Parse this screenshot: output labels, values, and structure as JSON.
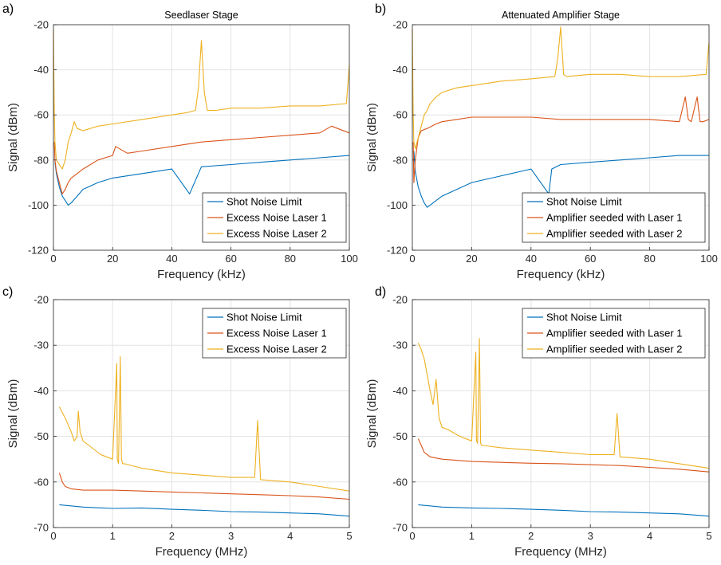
{
  "colors": {
    "shot": "#0072BD",
    "laser1": "#D95319",
    "laser2": "#EDB120",
    "grid": "#e3e3e3",
    "axis": "#262626"
  },
  "chart_data": [
    {
      "panel_label": "a)",
      "type": "line",
      "title": "Seedlaser Stage",
      "xlabel": "Frequency (kHz)",
      "ylabel": "Signal (dBm)",
      "xlim": [
        0,
        100
      ],
      "ylim": [
        -120,
        -20
      ],
      "xticks": [
        0,
        20,
        40,
        60,
        80,
        100
      ],
      "yticks": [
        -120,
        -100,
        -80,
        -60,
        -40,
        -20
      ],
      "grid": true,
      "legend_position": "bottom-right",
      "series": [
        {
          "name": "Shot Noise Limit",
          "color_key": "shot",
          "x": [
            0.5,
            1,
            2,
            3,
            4,
            5,
            6,
            8,
            10,
            15,
            20,
            30,
            40,
            46,
            50,
            60,
            70,
            80,
            90,
            100
          ],
          "y": [
            -81,
            -86,
            -92,
            -96,
            -98,
            -100,
            -99,
            -96,
            -93,
            -90,
            -88,
            -86,
            -84,
            -95,
            -83,
            -82,
            -81,
            -80,
            -79,
            -78
          ]
        },
        {
          "name": "Excess Noise Laser 1",
          "color_key": "laser1",
          "x": [
            0.3,
            0.5,
            1,
            2,
            3,
            4,
            5,
            6,
            8,
            10,
            15,
            20,
            21,
            25,
            30,
            40,
            50,
            60,
            70,
            80,
            90,
            94,
            100
          ],
          "y": [
            -72,
            -80,
            -85,
            -90,
            -95,
            -93,
            -90,
            -88,
            -86,
            -84,
            -80,
            -78,
            -74,
            -77,
            -76,
            -74,
            -72,
            -71,
            -70,
            -69,
            -68,
            -65,
            -68
          ]
        },
        {
          "name": "Excess Noise Laser 2",
          "color_key": "laser2",
          "x": [
            0,
            0.3,
            0.5,
            1,
            2,
            3,
            4,
            5,
            6,
            7,
            8,
            10,
            15,
            20,
            30,
            40,
            45,
            48,
            49,
            50,
            51,
            52,
            55,
            60,
            70,
            80,
            90,
            99,
            100
          ],
          "y": [
            -22,
            -60,
            -72,
            -80,
            -82,
            -84,
            -80,
            -72,
            -68,
            -63,
            -66,
            -67,
            -65,
            -64,
            -62,
            -60,
            -59,
            -58,
            -48,
            -27,
            -50,
            -58,
            -58,
            -57,
            -57,
            -56,
            -56,
            -55,
            -38
          ]
        }
      ]
    },
    {
      "panel_label": "b)",
      "type": "line",
      "title": "Attenuated Amplifier Stage",
      "xlabel": "Frequency (kHz)",
      "ylabel": "Signal (dBm)",
      "xlim": [
        0,
        100
      ],
      "ylim": [
        -120,
        -20
      ],
      "xticks": [
        0,
        20,
        40,
        60,
        80,
        100
      ],
      "yticks": [
        -120,
        -100,
        -80,
        -60,
        -40,
        -20
      ],
      "grid": true,
      "legend_position": "bottom-right",
      "series": [
        {
          "name": "Shot Noise Limit",
          "color_key": "shot",
          "x": [
            0.5,
            1,
            2,
            3,
            4,
            5,
            6,
            8,
            10,
            15,
            20,
            30,
            40,
            46,
            47,
            50,
            60,
            70,
            80,
            90,
            100
          ],
          "y": [
            -76,
            -85,
            -92,
            -96,
            -99,
            -101,
            -100,
            -98,
            -96,
            -93,
            -90,
            -87,
            -84,
            -95,
            -84,
            -82,
            -81,
            -80,
            -79,
            -78,
            -78
          ]
        },
        {
          "name": "Amplifier seeded with Laser 1",
          "color_key": "laser1",
          "x": [
            0.3,
            0.5,
            1,
            2,
            3,
            5,
            8,
            10,
            15,
            20,
            30,
            40,
            50,
            60,
            70,
            80,
            90,
            92,
            93,
            94,
            96,
            97,
            98,
            100
          ],
          "y": [
            -72,
            -90,
            -80,
            -70,
            -67,
            -66,
            -64,
            -63,
            -62,
            -61,
            -61,
            -61,
            -62,
            -62,
            -62,
            -62,
            -63,
            -52,
            -62,
            -63,
            -52,
            -63,
            -63,
            -62
          ]
        },
        {
          "name": "Amplifier seeded with Laser 2",
          "color_key": "laser2",
          "x": [
            0,
            0.3,
            0.5,
            1,
            2,
            3,
            4,
            5,
            6,
            8,
            10,
            15,
            20,
            30,
            40,
            48,
            49,
            50,
            51,
            52,
            60,
            70,
            80,
            90,
            99,
            100
          ],
          "y": [
            -22,
            -60,
            -72,
            -75,
            -70,
            -65,
            -60,
            -58,
            -55,
            -52,
            -50,
            -48,
            -47,
            -45,
            -44,
            -43,
            -35,
            -21,
            -42,
            -43,
            -42,
            -42,
            -43,
            -43,
            -42,
            -28
          ]
        }
      ]
    },
    {
      "panel_label": "c)",
      "type": "line",
      "title": "",
      "xlabel": "Frequency (MHz)",
      "ylabel": "Signal (dBm)",
      "xlim": [
        0,
        5
      ],
      "ylim": [
        -70,
        -20
      ],
      "xticks": [
        0,
        1,
        2,
        3,
        4,
        5
      ],
      "yticks": [
        -70,
        -60,
        -50,
        -40,
        -30,
        -20
      ],
      "grid": true,
      "legend_position": "top-right",
      "series": [
        {
          "name": "Shot Noise Limit",
          "color_key": "shot",
          "x": [
            0.1,
            0.5,
            1,
            1.5,
            2,
            2.5,
            3,
            3.5,
            4,
            4.5,
            5
          ],
          "y": [
            -65,
            -65.5,
            -65.8,
            -65.7,
            -66,
            -66.2,
            -66.5,
            -66.6,
            -66.8,
            -67,
            -67.5
          ]
        },
        {
          "name": "Excess Noise Laser 1",
          "color_key": "laser1",
          "x": [
            0.1,
            0.15,
            0.2,
            0.3,
            0.5,
            1,
            1.5,
            2,
            2.5,
            3,
            3.5,
            4,
            4.5,
            5
          ],
          "y": [
            -58,
            -60,
            -61,
            -61.5,
            -61.8,
            -61.8,
            -62,
            -62.2,
            -62.4,
            -62.6,
            -62.8,
            -63,
            -63.3,
            -63.8
          ]
        },
        {
          "name": "Excess Noise Laser 2",
          "color_key": "laser2",
          "x": [
            0.1,
            0.2,
            0.3,
            0.35,
            0.4,
            0.42,
            0.45,
            0.5,
            0.6,
            0.8,
            1.0,
            1.07,
            1.08,
            1.1,
            1.13,
            1.15,
            1.17,
            1.2,
            1.5,
            2.0,
            2.5,
            3.0,
            3.4,
            3.45,
            3.5,
            4.0,
            4.5,
            5.0
          ],
          "y": [
            -43.5,
            -46,
            -49,
            -51,
            -50,
            -44.5,
            -49,
            -51,
            -52,
            -54,
            -55,
            -34,
            -55,
            -56,
            -32.5,
            -55,
            -56,
            -56,
            -57,
            -58,
            -58.5,
            -59,
            -59,
            -46.5,
            -59.5,
            -60,
            -61,
            -62
          ]
        }
      ]
    },
    {
      "panel_label": "d)",
      "type": "line",
      "title": "",
      "xlabel": "Frequency (MHz)",
      "ylabel": "Signal (dBm)",
      "xlim": [
        0,
        5
      ],
      "ylim": [
        -70,
        -20
      ],
      "xticks": [
        0,
        1,
        2,
        3,
        4,
        5
      ],
      "yticks": [
        -70,
        -60,
        -50,
        -40,
        -30,
        -20
      ],
      "grid": true,
      "legend_position": "top-right",
      "series": [
        {
          "name": "Shot Noise Limit",
          "color_key": "shot",
          "x": [
            0.1,
            0.5,
            1,
            1.5,
            2,
            2.5,
            3,
            3.5,
            4,
            4.5,
            5
          ],
          "y": [
            -65,
            -65.5,
            -65.7,
            -65.8,
            -66,
            -66.2,
            -66.5,
            -66.6,
            -66.8,
            -67,
            -67.5
          ]
        },
        {
          "name": "Amplifier seeded with Laser 1",
          "color_key": "laser1",
          "x": [
            0.1,
            0.15,
            0.2,
            0.3,
            0.5,
            0.8,
            1,
            1.5,
            2,
            2.5,
            3,
            3.5,
            4,
            4.5,
            5
          ],
          "y": [
            -50.5,
            -52,
            -53.5,
            -54.5,
            -55,
            -55.3,
            -55.5,
            -55.7,
            -55.9,
            -56,
            -56.2,
            -56.4,
            -56.8,
            -57.2,
            -57.8
          ]
        },
        {
          "name": "Amplifier seeded with Laser 2",
          "color_key": "laser2",
          "x": [
            0.1,
            0.15,
            0.2,
            0.3,
            0.35,
            0.4,
            0.45,
            0.5,
            0.6,
            0.8,
            1.0,
            1.07,
            1.08,
            1.1,
            1.13,
            1.15,
            1.17,
            1.2,
            1.5,
            2.0,
            2.5,
            3.0,
            3.4,
            3.45,
            3.5,
            4.0,
            4.5,
            5.0
          ],
          "y": [
            -29.5,
            -31,
            -33,
            -40,
            -43,
            -37.5,
            -46,
            -48,
            -48.5,
            -50,
            -51,
            -31.5,
            -51,
            -51.5,
            -28.5,
            -51.5,
            -52,
            -52,
            -52.5,
            -53,
            -53.5,
            -54,
            -54,
            -45,
            -54.5,
            -55,
            -56,
            -57
          ]
        }
      ]
    }
  ]
}
